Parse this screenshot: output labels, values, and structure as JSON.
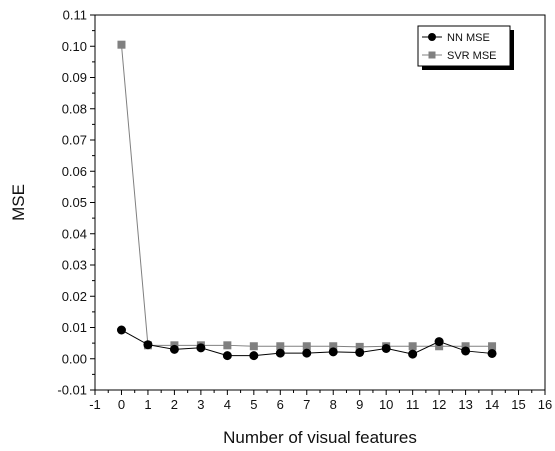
{
  "chart_data": {
    "type": "line",
    "xlabel": "Number of visual features",
    "ylabel": "MSE",
    "xlim": [
      -1,
      16
    ],
    "ylim": [
      -0.01,
      0.11
    ],
    "x_ticks": [
      -1,
      0,
      1,
      2,
      3,
      4,
      5,
      6,
      7,
      8,
      9,
      10,
      11,
      12,
      13,
      14,
      15,
      16
    ],
    "y_ticks": [
      -0.01,
      0.0,
      0.01,
      0.02,
      0.03,
      0.04,
      0.05,
      0.06,
      0.07,
      0.08,
      0.09,
      0.1,
      0.11
    ],
    "y_tick_labels": [
      "-0.01",
      "0.00",
      "0.01",
      "0.02",
      "0.03",
      "0.04",
      "0.05",
      "0.06",
      "0.07",
      "0.08",
      "0.09",
      "0.10",
      "0.11"
    ],
    "x": [
      0,
      1,
      2,
      3,
      4,
      5,
      6,
      7,
      8,
      9,
      10,
      11,
      12,
      13,
      14
    ],
    "grid": false,
    "legend_position": "top-right",
    "series": [
      {
        "name": "NN MSE",
        "marker": "circle",
        "color": "#000000",
        "values": [
          0.0092,
          0.0045,
          0.003,
          0.0035,
          0.001,
          0.001,
          0.0018,
          0.0018,
          0.0022,
          0.002,
          0.0033,
          0.0015,
          0.0055,
          0.0025,
          0.0017
        ]
      },
      {
        "name": "SVR MSE",
        "marker": "square",
        "color": "#808080",
        "values": [
          0.1005,
          0.0043,
          0.0043,
          0.0043,
          0.0043,
          0.004,
          0.004,
          0.004,
          0.004,
          0.0038,
          0.004,
          0.004,
          0.004,
          0.004,
          0.004
        ]
      }
    ]
  }
}
